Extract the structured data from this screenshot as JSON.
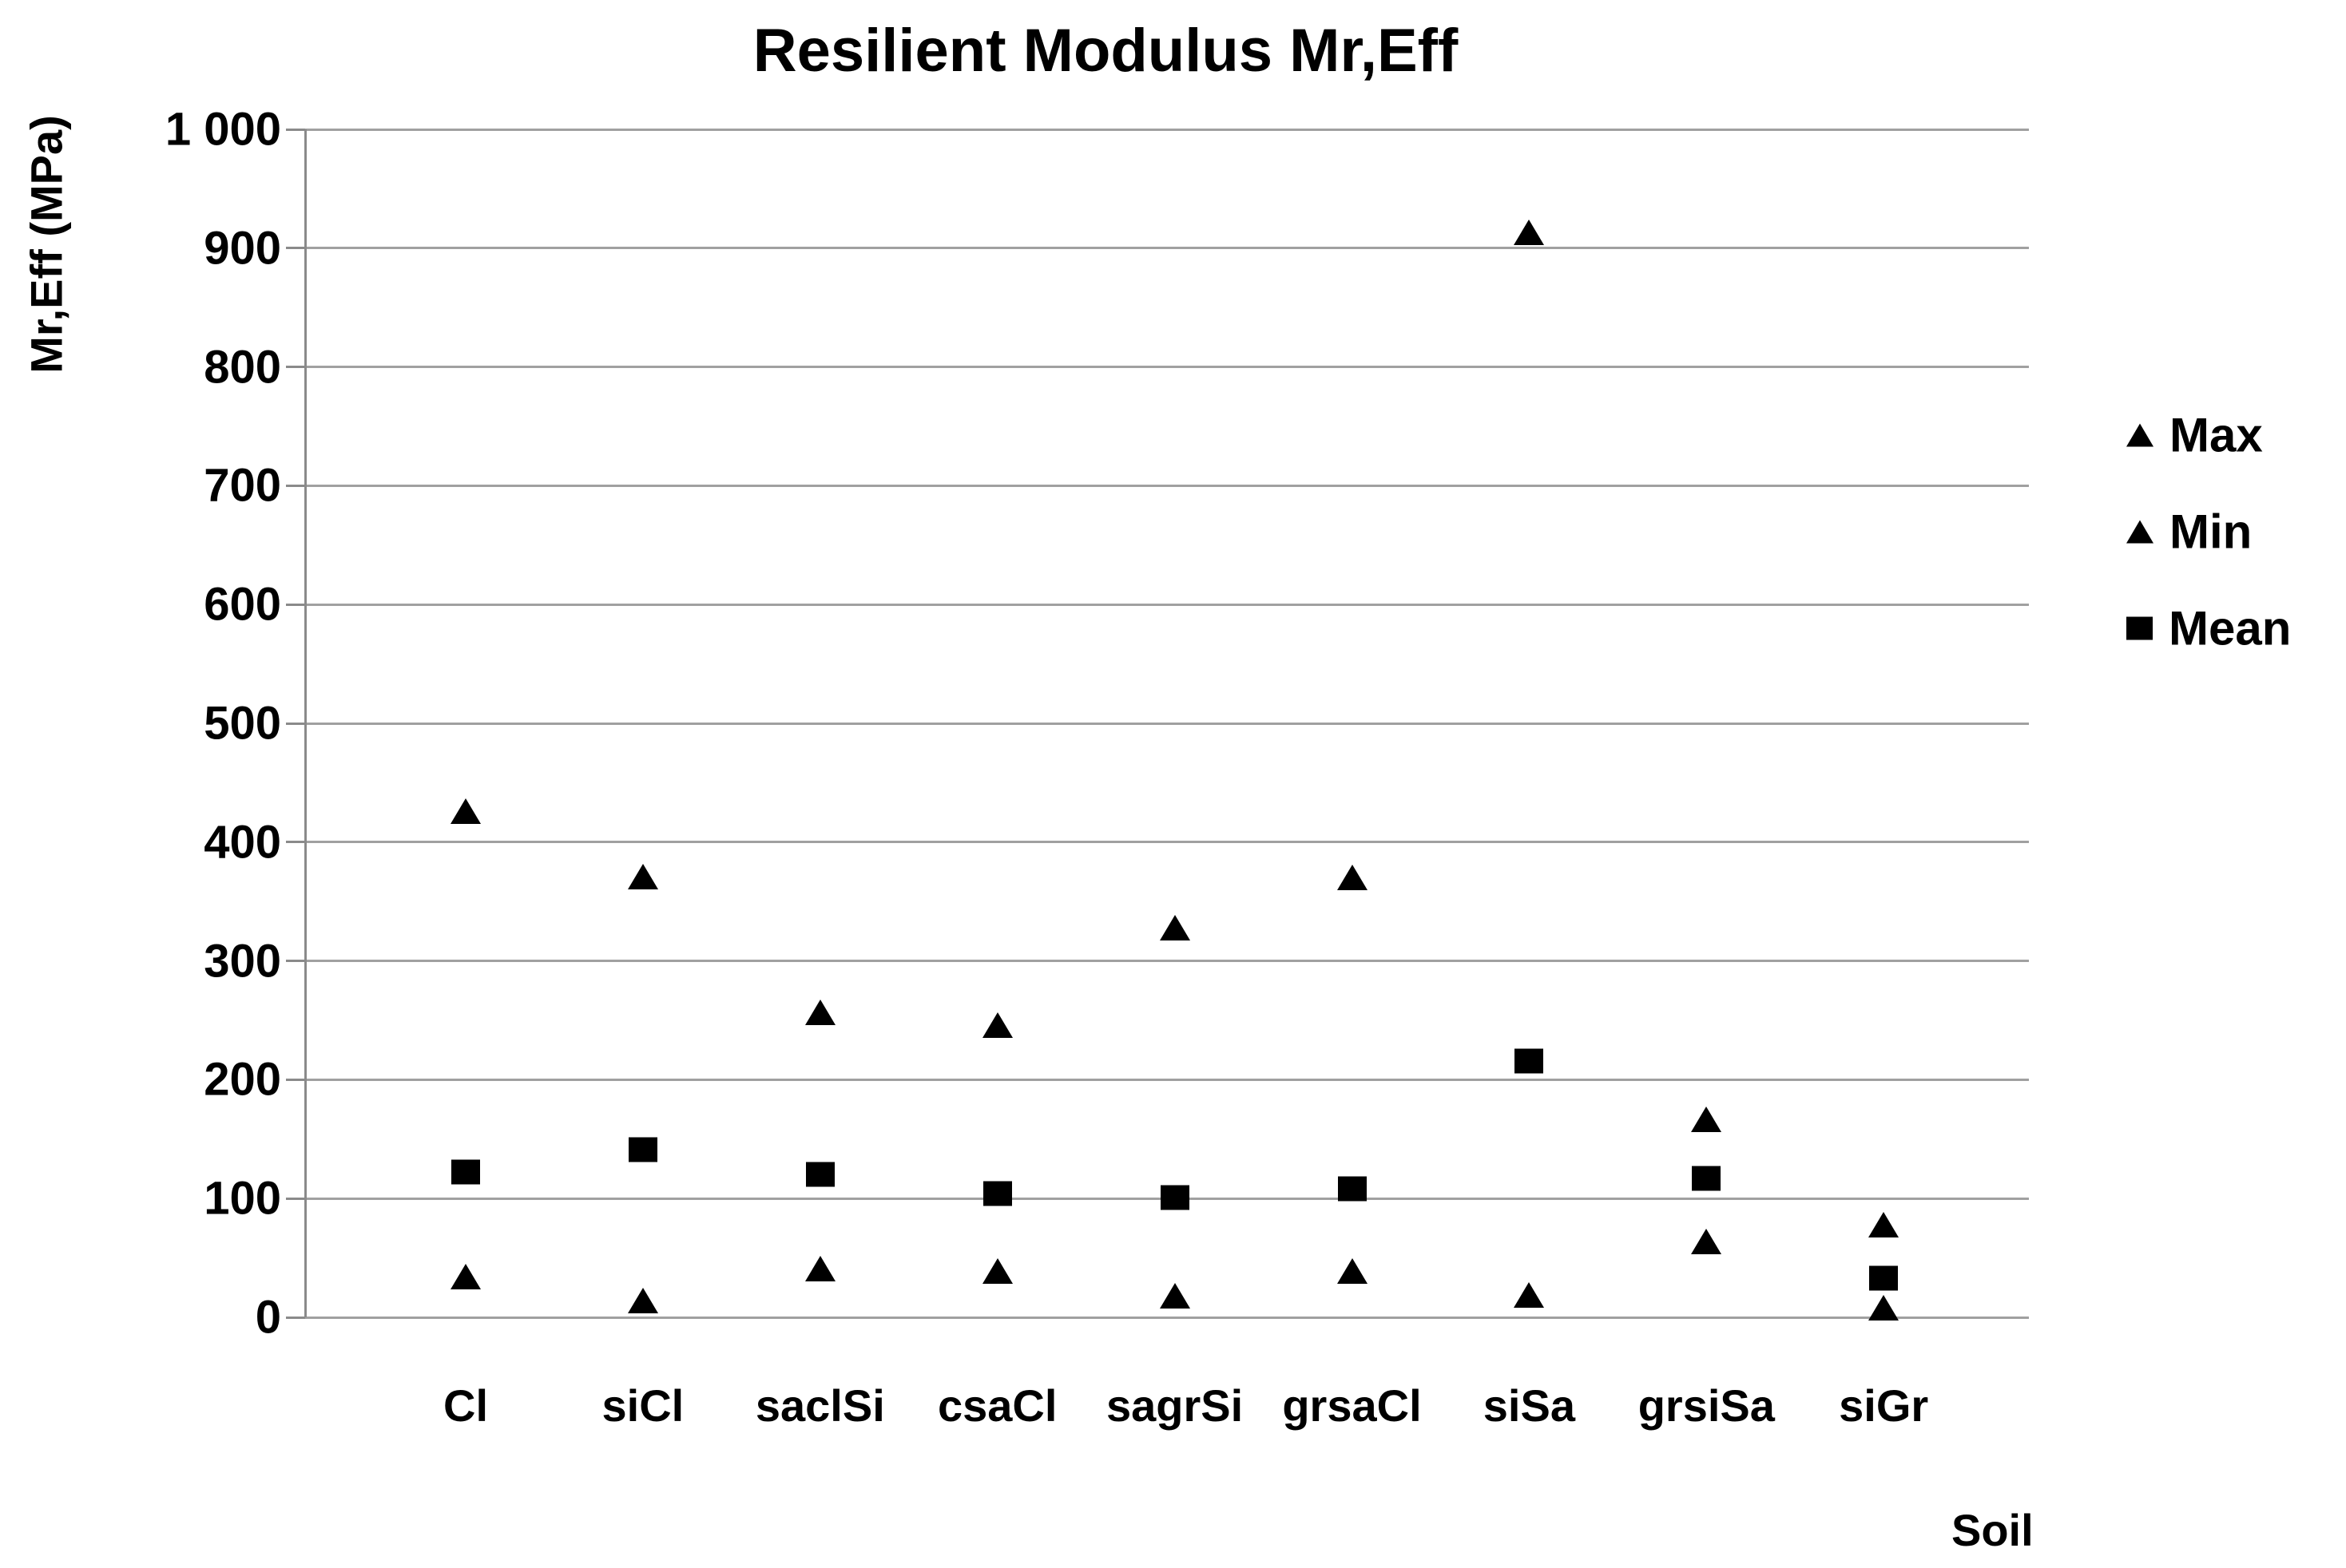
{
  "chart": {
    "title": "Resilient Modulus Mr,Eff",
    "y_axis": {
      "title": "Mr,Eff (MPa)",
      "tick_values": [
        0,
        100,
        200,
        300,
        400,
        500,
        600,
        700,
        800,
        900,
        1000
      ],
      "tick_labels": [
        "0",
        "100",
        "200",
        "300",
        "400",
        "500",
        "600",
        "700",
        "800",
        "900",
        "1 000"
      ]
    },
    "x_axis": {
      "title": "Soil"
    },
    "legend": [
      {
        "label": "Max",
        "marker": "triangle"
      },
      {
        "label": "Min",
        "marker": "triangle"
      },
      {
        "label": "Mean",
        "marker": "square"
      }
    ],
    "colors": {
      "marker": "#000000",
      "gridline": "#a0a0a0",
      "axis": "#8a8a8a",
      "text": "#000000"
    }
  },
  "chart_data": {
    "type": "scatter",
    "title": "Resilient Modulus Mr,Eff",
    "xlabel": "Soil",
    "ylabel": "Mr,Eff (MPa)",
    "categories": [
      "Cl",
      "siCl",
      "saclSi",
      "csaCl",
      "sagrSi",
      "grsaCl",
      "siSa",
      "grsiSa",
      "siGr"
    ],
    "series": [
      {
        "name": "Max",
        "marker": "triangle",
        "values": [
          426,
          371,
          257,
          246,
          328,
          370,
          913,
          167,
          78
        ]
      },
      {
        "name": "Min",
        "marker": "triangle",
        "values": [
          34,
          14,
          41,
          39,
          18,
          39,
          19,
          64,
          8
        ]
      },
      {
        "name": "Mean",
        "marker": "square",
        "values": [
          122,
          141,
          120,
          104,
          101,
          108,
          216,
          117,
          33
        ]
      }
    ],
    "ylim": [
      0,
      1000
    ],
    "ytick_step": 100,
    "grid": "horizontal",
    "legend_position": "right"
  }
}
